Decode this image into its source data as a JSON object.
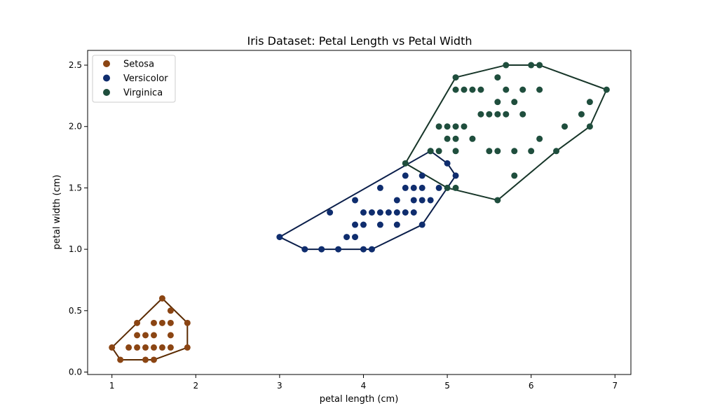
{
  "chart_data": {
    "type": "scatter",
    "title": "Iris Dataset: Petal Length vs Petal Width",
    "xlabel": "petal length (cm)",
    "ylabel": "petal width (cm)",
    "xlim": [
      0.71,
      7.19
    ],
    "ylim": [
      -0.02,
      2.62
    ],
    "xticks": [
      "1",
      "2",
      "3",
      "4",
      "5",
      "6",
      "7"
    ],
    "yticks": [
      "0.0",
      "0.5",
      "1.0",
      "1.5",
      "2.0",
      "2.5"
    ],
    "xtick_values": [
      1,
      2,
      3,
      4,
      5,
      6,
      7
    ],
    "ytick_values": [
      0.0,
      0.5,
      1.0,
      1.5,
      2.0,
      2.5
    ],
    "grid": false,
    "legend_position": "top-left",
    "series": [
      {
        "name": "Setosa",
        "color": "#8b4513",
        "hull_color": "#5a2a00",
        "points": [
          [
            1.0,
            0.2
          ],
          [
            1.1,
            0.1
          ],
          [
            1.2,
            0.2
          ],
          [
            1.3,
            0.2
          ],
          [
            1.3,
            0.3
          ],
          [
            1.3,
            0.4
          ],
          [
            1.4,
            0.1
          ],
          [
            1.4,
            0.2
          ],
          [
            1.4,
            0.3
          ],
          [
            1.5,
            0.1
          ],
          [
            1.5,
            0.2
          ],
          [
            1.5,
            0.3
          ],
          [
            1.5,
            0.4
          ],
          [
            1.6,
            0.2
          ],
          [
            1.6,
            0.4
          ],
          [
            1.6,
            0.6
          ],
          [
            1.7,
            0.2
          ],
          [
            1.7,
            0.3
          ],
          [
            1.7,
            0.4
          ],
          [
            1.7,
            0.5
          ],
          [
            1.9,
            0.2
          ],
          [
            1.9,
            0.4
          ]
        ],
        "hull": [
          [
            1.0,
            0.2
          ],
          [
            1.1,
            0.1
          ],
          [
            1.5,
            0.1
          ],
          [
            1.9,
            0.2
          ],
          [
            1.9,
            0.4
          ],
          [
            1.6,
            0.6
          ],
          [
            1.3,
            0.4
          ],
          [
            1.0,
            0.2
          ]
        ]
      },
      {
        "name": "Versicolor",
        "color": "#0f2d6e",
        "hull_color": "#0a1e4a",
        "points": [
          [
            3.0,
            1.1
          ],
          [
            3.3,
            1.0
          ],
          [
            3.5,
            1.0
          ],
          [
            3.6,
            1.3
          ],
          [
            3.7,
            1.0
          ],
          [
            3.8,
            1.1
          ],
          [
            3.9,
            1.1
          ],
          [
            3.9,
            1.2
          ],
          [
            3.9,
            1.4
          ],
          [
            4.0,
            1.0
          ],
          [
            4.0,
            1.2
          ],
          [
            4.0,
            1.3
          ],
          [
            4.1,
            1.0
          ],
          [
            4.1,
            1.3
          ],
          [
            4.2,
            1.2
          ],
          [
            4.2,
            1.3
          ],
          [
            4.2,
            1.5
          ],
          [
            4.3,
            1.3
          ],
          [
            4.4,
            1.2
          ],
          [
            4.4,
            1.3
          ],
          [
            4.4,
            1.4
          ],
          [
            4.5,
            1.3
          ],
          [
            4.5,
            1.5
          ],
          [
            4.5,
            1.6
          ],
          [
            4.6,
            1.3
          ],
          [
            4.6,
            1.4
          ],
          [
            4.6,
            1.5
          ],
          [
            4.7,
            1.2
          ],
          [
            4.7,
            1.4
          ],
          [
            4.7,
            1.5
          ],
          [
            4.7,
            1.6
          ],
          [
            4.8,
            1.4
          ],
          [
            4.8,
            1.8
          ],
          [
            4.9,
            1.5
          ],
          [
            5.0,
            1.7
          ],
          [
            5.1,
            1.6
          ]
        ],
        "hull": [
          [
            3.0,
            1.1
          ],
          [
            3.3,
            1.0
          ],
          [
            4.1,
            1.0
          ],
          [
            4.7,
            1.2
          ],
          [
            5.1,
            1.6
          ],
          [
            5.0,
            1.7
          ],
          [
            4.8,
            1.8
          ],
          [
            3.0,
            1.1
          ]
        ]
      },
      {
        "name": "Virginica",
        "color": "#1f4e3d",
        "hull_color": "#163528",
        "points": [
          [
            4.5,
            1.7
          ],
          [
            4.8,
            1.8
          ],
          [
            4.9,
            1.8
          ],
          [
            4.9,
            2.0
          ],
          [
            5.0,
            1.5
          ],
          [
            5.0,
            1.9
          ],
          [
            5.0,
            2.0
          ],
          [
            5.1,
            1.5
          ],
          [
            5.1,
            1.8
          ],
          [
            5.1,
            1.9
          ],
          [
            5.1,
            2.0
          ],
          [
            5.1,
            2.3
          ],
          [
            5.1,
            2.4
          ],
          [
            5.2,
            2.0
          ],
          [
            5.2,
            2.3
          ],
          [
            5.3,
            1.9
          ],
          [
            5.3,
            2.3
          ],
          [
            5.4,
            2.1
          ],
          [
            5.4,
            2.3
          ],
          [
            5.5,
            1.8
          ],
          [
            5.5,
            2.1
          ],
          [
            5.6,
            1.4
          ],
          [
            5.6,
            1.8
          ],
          [
            5.6,
            2.1
          ],
          [
            5.6,
            2.2
          ],
          [
            5.6,
            2.4
          ],
          [
            5.7,
            2.1
          ],
          [
            5.7,
            2.3
          ],
          [
            5.7,
            2.5
          ],
          [
            5.8,
            1.6
          ],
          [
            5.8,
            1.8
          ],
          [
            5.8,
            2.2
          ],
          [
            5.9,
            2.1
          ],
          [
            5.9,
            2.3
          ],
          [
            6.0,
            1.8
          ],
          [
            6.0,
            2.5
          ],
          [
            6.1,
            1.9
          ],
          [
            6.1,
            2.3
          ],
          [
            6.1,
            2.5
          ],
          [
            6.3,
            1.8
          ],
          [
            6.4,
            2.0
          ],
          [
            6.6,
            2.1
          ],
          [
            6.7,
            2.0
          ],
          [
            6.7,
            2.2
          ],
          [
            6.9,
            2.3
          ]
        ],
        "hull": [
          [
            4.5,
            1.7
          ],
          [
            5.1,
            2.4
          ],
          [
            5.7,
            2.5
          ],
          [
            6.1,
            2.5
          ],
          [
            6.9,
            2.3
          ],
          [
            6.7,
            2.0
          ],
          [
            6.3,
            1.8
          ],
          [
            5.6,
            1.4
          ],
          [
            5.0,
            1.5
          ],
          [
            4.5,
            1.7
          ]
        ]
      }
    ]
  }
}
